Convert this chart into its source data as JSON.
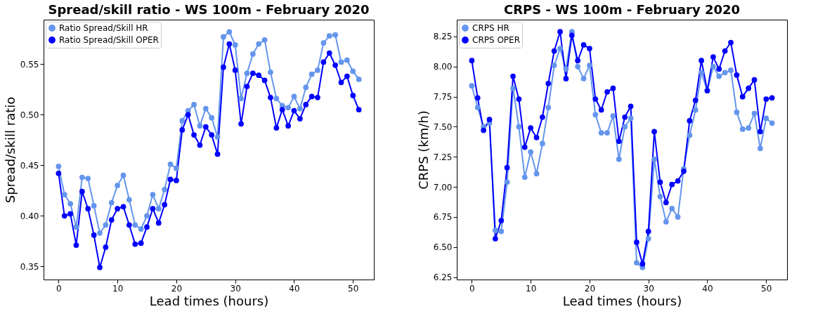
{
  "chart_data": [
    {
      "type": "line",
      "title": "Spread/skill ratio - WS 100m - February 2020",
      "xlabel": "Lead times (hours)",
      "ylabel": "Spread/skill ratio",
      "x": [
        0,
        1,
        2,
        3,
        4,
        5,
        6,
        7,
        8,
        9,
        10,
        11,
        12,
        13,
        14,
        15,
        16,
        17,
        18,
        19,
        20,
        21,
        22,
        23,
        24,
        25,
        26,
        27,
        28,
        29,
        30,
        31,
        32,
        33,
        34,
        35,
        36,
        37,
        38,
        39,
        40,
        41,
        42,
        43,
        44,
        45,
        46,
        47,
        48,
        49,
        50,
        51
      ],
      "xlim": [
        -2.55,
        53.55
      ],
      "xticks": [
        0,
        10,
        20,
        30,
        40,
        50
      ],
      "ylim": [
        0.337,
        0.594
      ],
      "yticks": [
        {
          "value": 0.35,
          "label": "0.35"
        },
        {
          "value": 0.4,
          "label": "0.40"
        },
        {
          "value": 0.45,
          "label": "0.45"
        },
        {
          "value": 0.5,
          "label": "0.50"
        },
        {
          "value": 0.55,
          "label": "0.55"
        }
      ],
      "series": [
        {
          "name": "Ratio Spread/Skill HR",
          "color": "#6495ed",
          "values": [
            0.449,
            0.421,
            0.412,
            0.389,
            0.438,
            0.437,
            0.41,
            0.383,
            0.391,
            0.413,
            0.43,
            0.44,
            0.416,
            0.391,
            0.387,
            0.4,
            0.421,
            0.407,
            0.426,
            0.451,
            0.447,
            0.494,
            0.504,
            0.51,
            0.489,
            0.506,
            0.497,
            0.478,
            0.577,
            0.582,
            0.569,
            0.516,
            0.541,
            0.56,
            0.57,
            0.574,
            0.542,
            0.516,
            0.509,
            0.507,
            0.518,
            0.506,
            0.527,
            0.54,
            0.544,
            0.571,
            0.578,
            0.579,
            0.552,
            0.554,
            0.543,
            0.535
          ]
        },
        {
          "name": "Ratio Spread/Skill OPER",
          "color": "#0000ff",
          "values": [
            0.442,
            0.4,
            0.402,
            0.371,
            0.424,
            0.407,
            0.381,
            0.349,
            0.369,
            0.396,
            0.407,
            0.409,
            0.391,
            0.372,
            0.373,
            0.389,
            0.407,
            0.393,
            0.411,
            0.436,
            0.435,
            0.485,
            0.5,
            0.48,
            0.47,
            0.488,
            0.48,
            0.461,
            0.547,
            0.57,
            0.544,
            0.491,
            0.528,
            0.541,
            0.539,
            0.534,
            0.517,
            0.487,
            0.505,
            0.489,
            0.504,
            0.496,
            0.51,
            0.518,
            0.517,
            0.552,
            0.561,
            0.549,
            0.532,
            0.538,
            0.519,
            0.505
          ]
        }
      ],
      "legend": "top left",
      "grid": false,
      "marker": "circle",
      "line_style": "solid"
    },
    {
      "type": "line",
      "title": "CRPS - WS 100m - February 2020",
      "xlabel": "Lead times (hours)",
      "ylabel": "CRPS (km/h)",
      "x": [
        0,
        1,
        2,
        3,
        4,
        5,
        6,
        7,
        8,
        9,
        10,
        11,
        12,
        13,
        14,
        15,
        16,
        17,
        18,
        19,
        20,
        21,
        22,
        23,
        24,
        25,
        26,
        27,
        28,
        29,
        30,
        31,
        32,
        33,
        34,
        35,
        36,
        37,
        38,
        39,
        40,
        41,
        42,
        43,
        44,
        45,
        46,
        47,
        48,
        49,
        50,
        51
      ],
      "xlim": [
        -2.55,
        53.55
      ],
      "xticks": [
        0,
        10,
        20,
        30,
        40,
        50
      ],
      "ylim": [
        6.23,
        8.39
      ],
      "yticks": [
        {
          "value": 6.25,
          "label": "6.25"
        },
        {
          "value": 6.5,
          "label": "6.50"
        },
        {
          "value": 6.75,
          "label": "6.75"
        },
        {
          "value": 7.0,
          "label": "7.00"
        },
        {
          "value": 7.25,
          "label": "7.25"
        },
        {
          "value": 7.5,
          "label": "7.50"
        },
        {
          "value": 7.75,
          "label": "7.75"
        },
        {
          "value": 8.0,
          "label": "8.00"
        },
        {
          "value": 8.25,
          "label": "8.25"
        }
      ],
      "series": [
        {
          "name": "CRPS HR",
          "color": "#6495ed",
          "values": [
            7.84,
            7.66,
            7.5,
            7.53,
            6.64,
            6.63,
            7.04,
            7.82,
            7.5,
            7.08,
            7.29,
            7.11,
            7.36,
            7.66,
            8.01,
            8.15,
            7.98,
            8.29,
            8.0,
            7.9,
            8.01,
            7.6,
            7.45,
            7.45,
            7.59,
            7.23,
            7.5,
            7.57,
            6.37,
            6.33,
            6.57,
            7.23,
            6.92,
            6.71,
            6.82,
            6.75,
            7.15,
            7.43,
            7.64,
            7.95,
            7.8,
            8.0,
            7.92,
            7.95,
            7.97,
            7.62,
            7.48,
            7.49,
            7.61,
            7.32,
            7.57,
            7.53
          ]
        },
        {
          "name": "CRPS OPER",
          "color": "#0000ff",
          "values": [
            8.05,
            7.74,
            7.47,
            7.56,
            6.57,
            6.72,
            7.16,
            7.92,
            7.73,
            7.33,
            7.49,
            7.41,
            7.58,
            7.86,
            8.13,
            8.29,
            7.9,
            8.26,
            8.05,
            8.18,
            8.15,
            7.73,
            7.64,
            7.79,
            7.82,
            7.38,
            7.58,
            7.67,
            6.54,
            6.36,
            6.63,
            7.46,
            7.04,
            6.87,
            7.02,
            7.05,
            7.13,
            7.55,
            7.72,
            8.05,
            7.8,
            8.08,
            7.98,
            8.13,
            8.2,
            7.93,
            7.75,
            7.82,
            7.89,
            7.46,
            7.73,
            7.74
          ]
        }
      ],
      "legend": "top left",
      "grid": false,
      "marker": "circle",
      "line_style": "solid"
    }
  ]
}
